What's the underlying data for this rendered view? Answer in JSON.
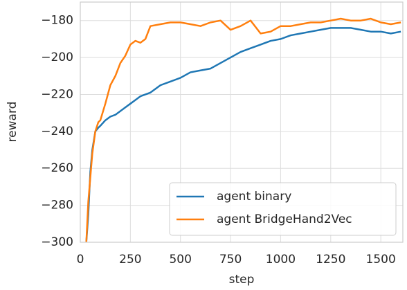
{
  "chart_data": {
    "type": "line",
    "x_label": "step",
    "y_label": "reward",
    "x": [
      30,
      40,
      50,
      60,
      75,
      90,
      100,
      125,
      150,
      175,
      200,
      225,
      250,
      275,
      300,
      325,
      350,
      400,
      450,
      500,
      550,
      600,
      650,
      700,
      750,
      800,
      850,
      900,
      950,
      1000,
      1050,
      1100,
      1150,
      1200,
      1250,
      1300,
      1350,
      1400,
      1450,
      1500,
      1550,
      1600
    ],
    "series": [
      {
        "name": "agent binary",
        "color": "#1f77b4",
        "values": [
          -300,
          -285,
          -262,
          -250,
          -240,
          -238,
          -237,
          -234,
          -232,
          -231,
          -229,
          -227,
          -225,
          -223,
          -221,
          -220,
          -219,
          -215,
          -213,
          -211,
          -208,
          -207,
          -206,
          -203,
          -200,
          -197,
          -195,
          -193,
          -191,
          -190,
          -188,
          -187,
          -186,
          -185,
          -184,
          -184,
          -184,
          -185,
          -186,
          -186,
          -187,
          -186
        ]
      },
      {
        "name": "agent BridgeHand2Vec",
        "color": "#ff7f0e",
        "values": [
          -300,
          -278,
          -265,
          -252,
          -240,
          -235,
          -234,
          -225,
          -215,
          -210,
          -203,
          -199,
          -193,
          -191,
          -192,
          -190,
          -183,
          -182,
          -181,
          -181,
          -182,
          -183,
          -181,
          -180,
          -185,
          -183,
          -180,
          -187,
          -186,
          -183,
          -183,
          -182,
          -181,
          -181,
          -180,
          -179,
          -180,
          -180,
          -179,
          -181,
          -182,
          -181
        ]
      }
    ],
    "xlim": [
      0,
      1610
    ],
    "ylim": [
      -300,
      -170
    ],
    "xticks": [
      0,
      250,
      500,
      750,
      1000,
      1250,
      1500
    ],
    "yticks": [
      {
        "value": -300,
        "label": "−300"
      },
      {
        "value": -280,
        "label": "−280"
      },
      {
        "value": -260,
        "label": "−260"
      },
      {
        "value": -240,
        "label": "−240"
      },
      {
        "value": -220,
        "label": "−220"
      },
      {
        "value": -200,
        "label": "−200"
      },
      {
        "value": -180,
        "label": "−180"
      }
    ],
    "grid": true,
    "legend": "lower right"
  }
}
